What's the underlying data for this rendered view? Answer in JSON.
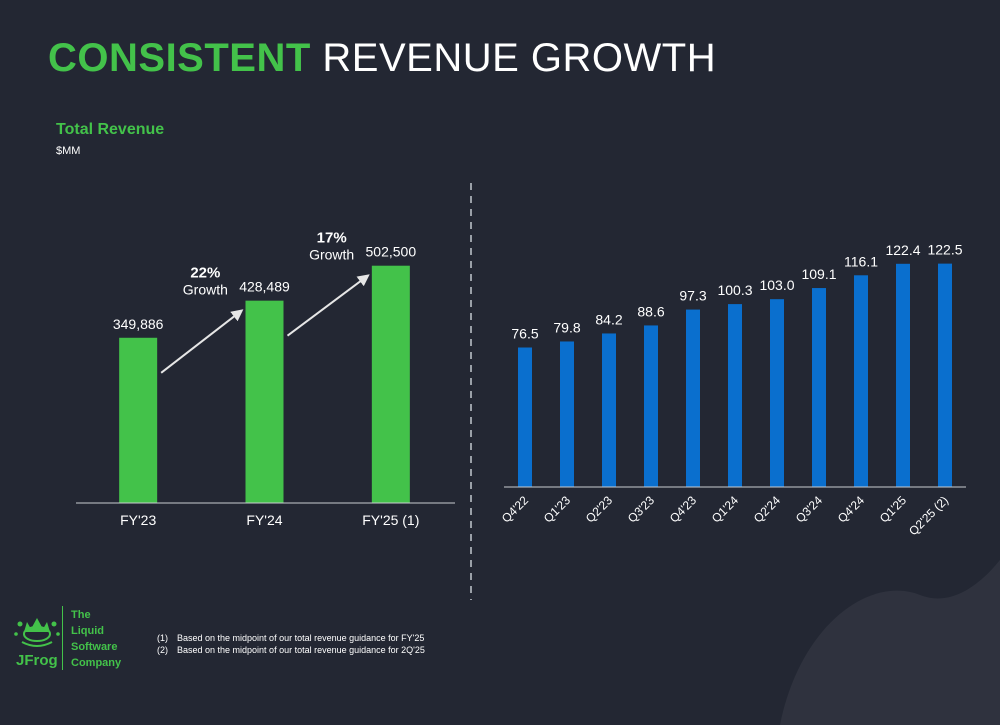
{
  "header": {
    "title_accent": "CONSISTENT",
    "title_rest": " REVENUE GROWTH"
  },
  "chart_data": [
    {
      "type": "bar",
      "title": "Total Revenue",
      "subtitle": "$MM",
      "categories": [
        "FY'23",
        "FY'24",
        "FY'25 (1)"
      ],
      "values": [
        349886,
        428489,
        502500
      ],
      "value_labels": [
        "349,886",
        "428,489",
        "502,500"
      ],
      "ylim": [
        0,
        540000
      ],
      "color": "#43c24a",
      "annotations": [
        {
          "from": "FY'23",
          "to": "FY'24",
          "pct": "22%",
          "text": "Growth"
        },
        {
          "from": "FY'24",
          "to": "FY'25 (1)",
          "pct": "17%",
          "text": "Growth"
        }
      ],
      "grid": false
    },
    {
      "type": "bar",
      "categories": [
        "Q4'22",
        "Q1'23",
        "Q2'23",
        "Q3'23",
        "Q4'23",
        "Q1'24",
        "Q2'24",
        "Q3'24",
        "Q4'24",
        "Q1'25",
        "Q2'25 (2)"
      ],
      "values": [
        76.5,
        79.8,
        84.2,
        88.6,
        97.3,
        100.3,
        103.0,
        109.1,
        116.1,
        122.4,
        122.5
      ],
      "value_labels": [
        "76.5",
        "79.8",
        "84.2",
        "88.6",
        "97.3",
        "100.3",
        "103.0",
        "109.1",
        "116.1",
        "122.4",
        "122.5"
      ],
      "ylim": [
        0,
        136
      ],
      "color": "#0a6fce",
      "grid": false
    }
  ],
  "logo": {
    "word": "JFrog",
    "tagline": [
      "The",
      "Liquid",
      "Software",
      "Company"
    ]
  },
  "footnotes": [
    {
      "num": "(1)",
      "text": "Based on the midpoint of our total revenue guidance for FY'25"
    },
    {
      "num": "(2)",
      "text": "Based on the midpoint of our total revenue guidance for 2Q'25"
    }
  ]
}
